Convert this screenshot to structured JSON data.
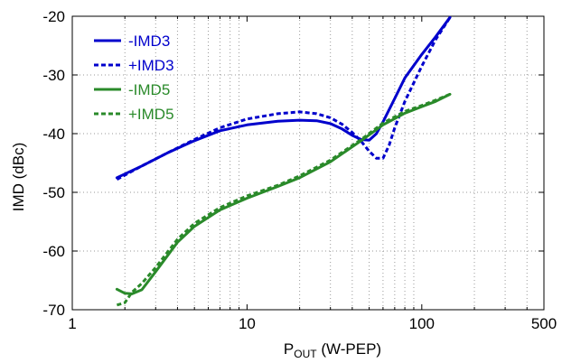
{
  "chart_data": {
    "type": "line",
    "xlabel": "P",
    "xlabel_subscript": "OUT",
    "xlabel_suffix": " (W-PEP)",
    "ylabel": "IMD (dBc)",
    "x_scale": "log",
    "xlim": [
      1,
      500
    ],
    "ylim": [
      -70,
      -20
    ],
    "x_ticks": [
      1,
      10,
      100,
      500
    ],
    "x_tick_labels": [
      "1",
      "10",
      "100",
      "500"
    ],
    "y_ticks": [
      -70,
      -60,
      -50,
      -40,
      -30,
      -20
    ],
    "y_tick_labels": [
      "-70",
      "-60",
      "-50",
      "-40",
      "-30",
      "-20"
    ],
    "x_minor_ticks": [
      2,
      3,
      4,
      5,
      6,
      7,
      8,
      9,
      20,
      30,
      40,
      50,
      60,
      70,
      80,
      90,
      200,
      300,
      400
    ],
    "grid": {
      "x_minor": "dotted",
      "y_major": "dotted"
    },
    "legend_position": "top-left",
    "series": [
      {
        "name": "-IMD3",
        "color": "#0000cc",
        "dash": "solid",
        "x": [
          1.8,
          2.5,
          3.5,
          5,
          7,
          10,
          15,
          20,
          25,
          30,
          35,
          40,
          45,
          50,
          55,
          60,
          70,
          80,
          100,
          120,
          145
        ],
        "y": [
          -47.5,
          -45.5,
          -43.3,
          -41.2,
          -39.5,
          -38.5,
          -37.9,
          -37.7,
          -37.8,
          -38.3,
          -39.2,
          -40.3,
          -41.0,
          -41.1,
          -40.0,
          -38.0,
          -34.0,
          -30.5,
          -26.5,
          -23.5,
          -20.2
        ]
      },
      {
        "name": "+IMD3",
        "color": "#0000cc",
        "dash": "dashed",
        "x": [
          1.8,
          2.5,
          3.5,
          5,
          7,
          10,
          15,
          20,
          25,
          30,
          35,
          40,
          45,
          50,
          55,
          60,
          65,
          70,
          80,
          100,
          120,
          145
        ],
        "y": [
          -47.8,
          -45.5,
          -43.3,
          -41.0,
          -39.0,
          -37.5,
          -36.6,
          -36.3,
          -36.6,
          -37.3,
          -38.4,
          -39.8,
          -41.3,
          -43.0,
          -44.2,
          -44.2,
          -42.0,
          -39.0,
          -34.5,
          -28.5,
          -24.0,
          -20.2
        ]
      },
      {
        "name": "-IMD5",
        "color": "#2a8a2a",
        "dash": "solid",
        "x": [
          1.8,
          2.0,
          2.2,
          2.5,
          3,
          4,
          5,
          7,
          10,
          15,
          20,
          30,
          45,
          60,
          80,
          100,
          120,
          145
        ],
        "y": [
          -66.5,
          -67.2,
          -67.3,
          -66.6,
          -63.5,
          -58.5,
          -55.8,
          -53.0,
          -51.0,
          -49.0,
          -47.5,
          -44.8,
          -41.2,
          -38.5,
          -36.5,
          -35.4,
          -34.5,
          -33.3
        ]
      },
      {
        "name": "+IMD5",
        "color": "#2a8a2a",
        "dash": "dashed",
        "x": [
          1.8,
          2.0,
          2.2,
          2.5,
          3,
          4,
          5,
          7,
          10,
          15,
          20,
          30,
          45,
          60,
          80,
          100,
          120,
          145
        ],
        "y": [
          -69.2,
          -68.8,
          -67.0,
          -65.5,
          -62.8,
          -58.0,
          -55.3,
          -52.6,
          -50.6,
          -48.8,
          -47.2,
          -44.5,
          -41.0,
          -38.2,
          -36.2,
          -35.2,
          -34.3,
          -33.3
        ]
      }
    ]
  }
}
